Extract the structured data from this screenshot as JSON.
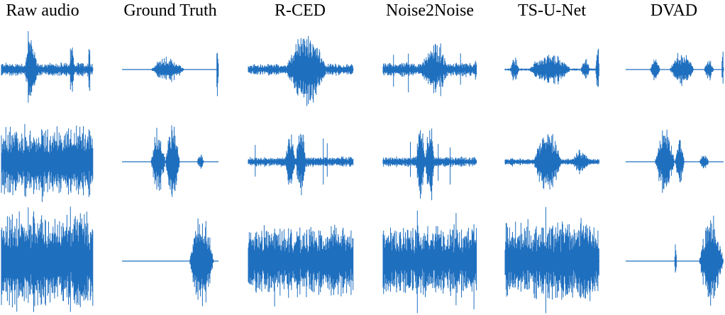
{
  "columns": [
    {
      "label": "Raw audio"
    },
    {
      "label": "Ground Truth"
    },
    {
      "label": "R-CED"
    },
    {
      "label": "Noise2Noise"
    },
    {
      "label": "TS-U-Net"
    },
    {
      "label": "DVAD"
    }
  ],
  "rows": 3,
  "waveform_color": "#1f6fbf"
}
